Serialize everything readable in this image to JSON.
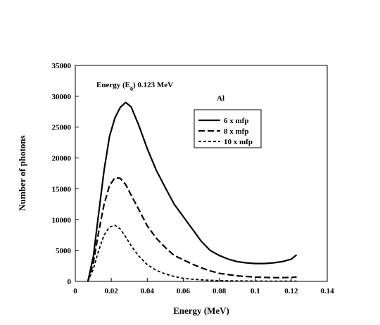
{
  "chart_data": {
    "type": "line",
    "xlabel": "Energy (MeV)",
    "ylabel": "Number of photons",
    "xlim": [
      0,
      0.14
    ],
    "ylim": [
      0,
      35000
    ],
    "xticks": [
      "0",
      "0.02",
      "0.04",
      "0.06",
      "0.08",
      "0.1",
      "0.12",
      "0.14"
    ],
    "yticks": [
      "0",
      "5000",
      "10000",
      "15000",
      "20000",
      "25000",
      "30000",
      "35000"
    ],
    "annotation_energy": {
      "main": "Energy (E",
      "subscript": "0",
      "rest": ") 0.123 MeV"
    },
    "annotation_material": "Al",
    "legend_position": "top-right",
    "series": [
      {
        "name": "6 x mfp",
        "style": "solid",
        "x": [
          0.007,
          0.01,
          0.013,
          0.016,
          0.019,
          0.022,
          0.025,
          0.028,
          0.031,
          0.035,
          0.04,
          0.045,
          0.05,
          0.055,
          0.06,
          0.065,
          0.07,
          0.075,
          0.08,
          0.085,
          0.09,
          0.095,
          0.1,
          0.105,
          0.11,
          0.115,
          0.12,
          0.123
        ],
        "y": [
          0,
          4000,
          11000,
          18000,
          23500,
          26500,
          28200,
          29000,
          28300,
          25500,
          21500,
          18000,
          15200,
          12500,
          10500,
          8500,
          6500,
          5000,
          4200,
          3600,
          3200,
          3000,
          2900,
          2900,
          3000,
          3200,
          3600,
          4300
        ]
      },
      {
        "name": "8 x mfp",
        "style": "dashed",
        "x": [
          0.007,
          0.01,
          0.013,
          0.016,
          0.019,
          0.022,
          0.025,
          0.028,
          0.031,
          0.035,
          0.04,
          0.045,
          0.05,
          0.055,
          0.06,
          0.065,
          0.07,
          0.075,
          0.08,
          0.085,
          0.09,
          0.095,
          0.1,
          0.105,
          0.11,
          0.115,
          0.12,
          0.123
        ],
        "y": [
          0,
          3000,
          8000,
          12500,
          15500,
          16800,
          16700,
          15700,
          14000,
          11800,
          9000,
          7000,
          5500,
          4200,
          3500,
          2800,
          2200,
          1700,
          1300,
          1100,
          900,
          800,
          700,
          650,
          600,
          600,
          650,
          700
        ]
      },
      {
        "name": "10 x mfp",
        "style": "short-dash",
        "x": [
          0.007,
          0.01,
          0.013,
          0.016,
          0.019,
          0.022,
          0.025,
          0.028,
          0.031,
          0.035,
          0.04,
          0.045,
          0.05,
          0.055,
          0.06,
          0.065,
          0.07,
          0.075,
          0.08,
          0.085,
          0.09,
          0.095,
          0.1,
          0.105,
          0.11,
          0.115,
          0.12,
          0.123
        ],
        "y": [
          0,
          2000,
          5000,
          7500,
          8800,
          9100,
          8500,
          7200,
          5800,
          4200,
          2700,
          1800,
          1200,
          800,
          500,
          350,
          250,
          180,
          130,
          100,
          80,
          70,
          60,
          50,
          50,
          50,
          50,
          50
        ]
      }
    ]
  }
}
